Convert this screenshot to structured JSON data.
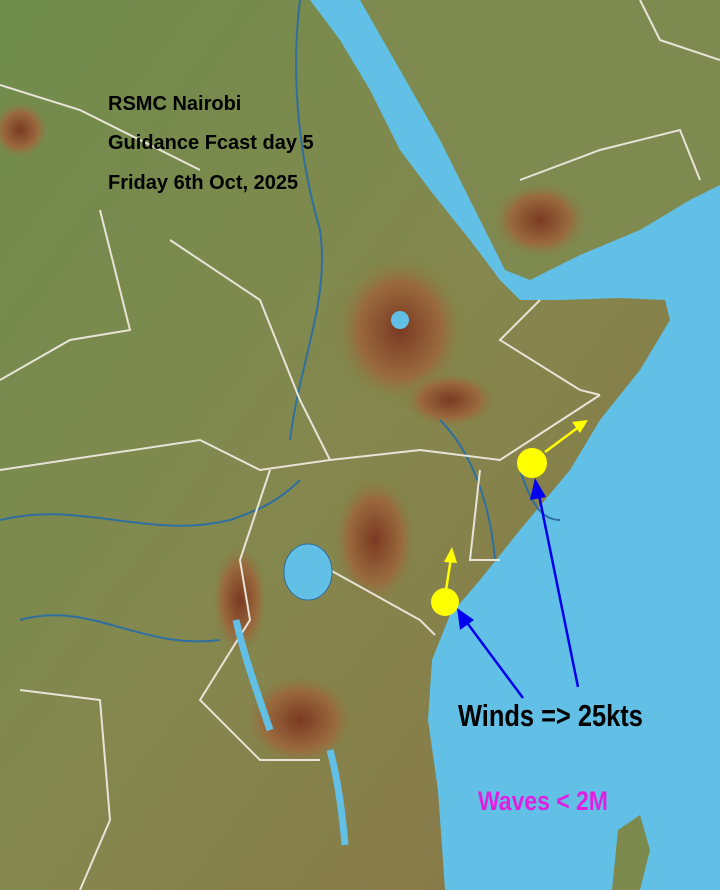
{
  "title": {
    "line1": "RSMC Nairobi",
    "line2": "Guidance Fcast day 5",
    "line3": "Friday 6th Oct, 2025"
  },
  "annotations": {
    "winds": "Winds => 25kts",
    "waves": "Waves < 2M"
  },
  "colors": {
    "sea": "#62c0e6",
    "land_low": "#6f8a4a",
    "land_high": "#8a4a2a",
    "borders": "#e8e4d8",
    "rivers": "#2e6fa0",
    "marker": "#ffff00",
    "pointer_arrow": "#0000ee",
    "waves_text": "#e020e0"
  },
  "markers": [
    {
      "name": "northern-somalia-coast-point",
      "wind_direction": "north-east"
    },
    {
      "name": "kenya-coast-point",
      "wind_direction": "north"
    }
  ]
}
